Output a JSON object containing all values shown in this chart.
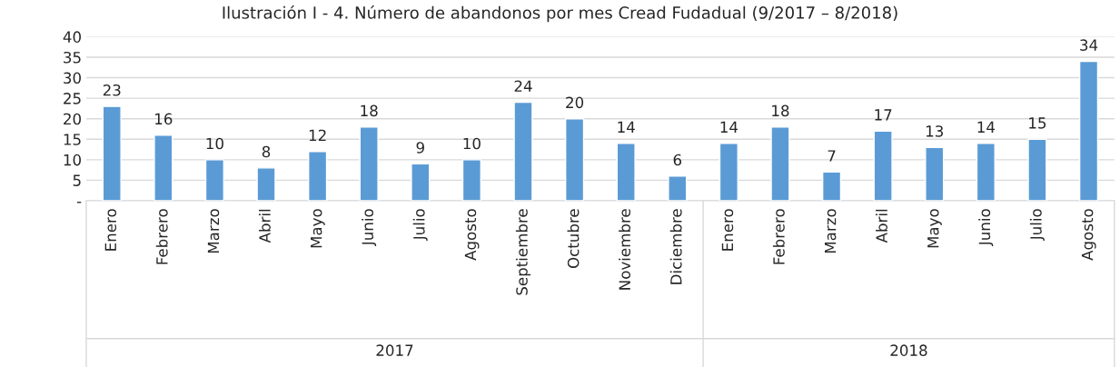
{
  "chart_data": {
    "type": "bar",
    "title": "Ilustración I - 4. Número de abandonos por mes Cread Fudadual (9/2017 – 8/2018)",
    "categories": [
      "Enero",
      "Febrero",
      "Marzo",
      "Abril",
      "Mayo",
      "Junio",
      "Julio",
      "Agosto",
      "Septiembre",
      "Octubre",
      "Noviembre",
      "Diciembre",
      "Enero",
      "Febrero",
      "Marzo",
      "Abril",
      "Mayo",
      "Junio",
      "Julio",
      "Agosto"
    ],
    "values": [
      23,
      16,
      10,
      8,
      12,
      18,
      9,
      10,
      24,
      20,
      14,
      6,
      14,
      18,
      7,
      17,
      13,
      14,
      15,
      34
    ],
    "color": "#5b9bd5",
    "ylim": [
      0,
      40
    ],
    "yticks": [
      {
        "value": 0,
        "label": "-"
      },
      5,
      10,
      15,
      20,
      25,
      30,
      35,
      40
    ],
    "grid": "y",
    "data_labels": true,
    "annotations": [
      "2017",
      "2018"
    ]
  }
}
